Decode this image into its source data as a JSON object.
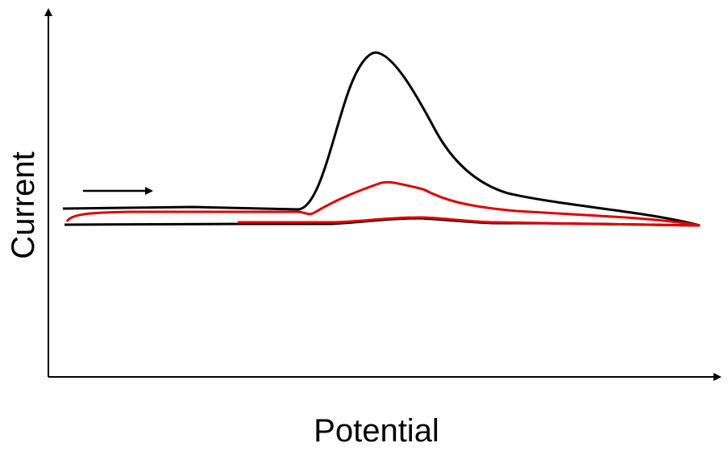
{
  "axes": {
    "x_label": "Potential",
    "y_label": "Current"
  }
}
